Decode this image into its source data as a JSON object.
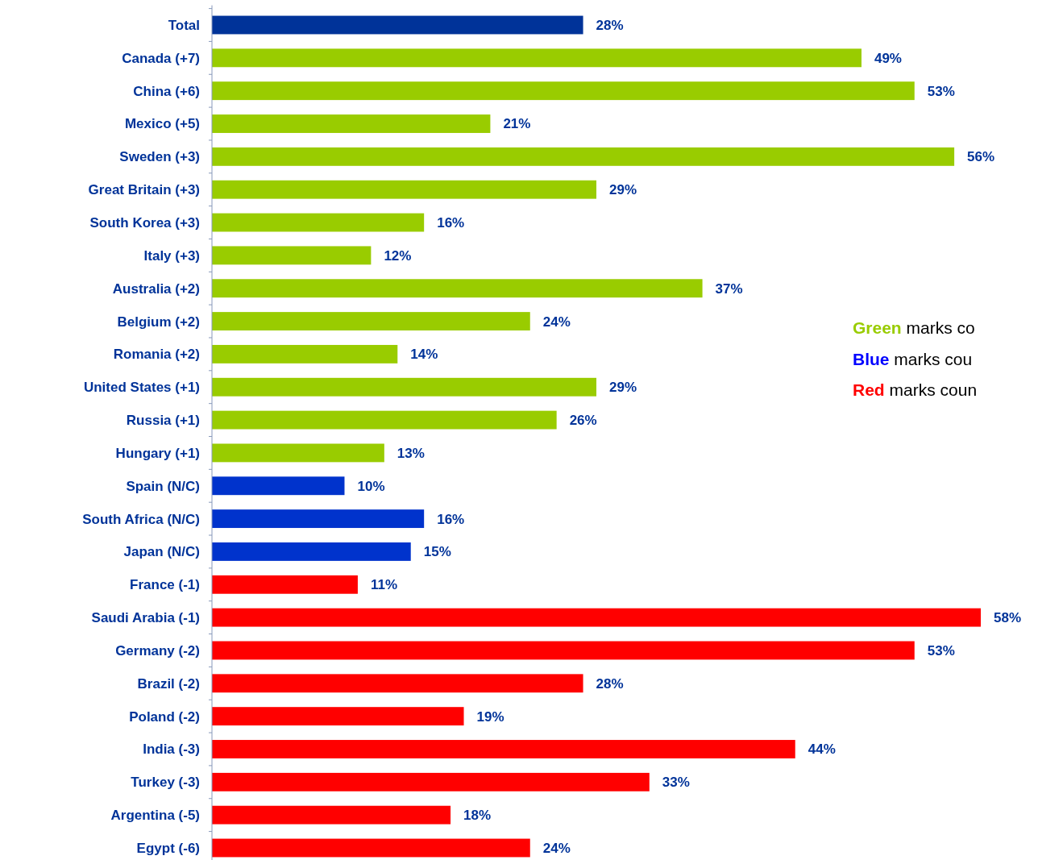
{
  "chart_data": {
    "type": "bar",
    "orientation": "horizontal",
    "value_labels": [
      "28%",
      "49%",
      "53%",
      "21%",
      "56%",
      "29%",
      "16%",
      "12%",
      "37%",
      "24%",
      "14%",
      "29%",
      "26%",
      "13%",
      "10%",
      "16%",
      "15%",
      "11%",
      "58%",
      "53%",
      "28%",
      "19%",
      "44%",
      "33%",
      "18%",
      "24%"
    ],
    "categories": [
      "Total",
      "Canada (+7)",
      "China (+6)",
      "Mexico (+5)",
      "Sweden (+3)",
      "Great Britain (+3)",
      "South Korea (+3)",
      "Italy (+3)",
      "Australia (+2)",
      "Belgium (+2)",
      "Romania (+2)",
      "United States (+1)",
      "Russia (+1)",
      "Hungary (+1)",
      "Spain (N/C)",
      "South Africa (N/C)",
      "Japan (N/C)",
      "France (-1)",
      "Saudi Arabia (-1)",
      "Germany (-2)",
      "Brazil (-2)",
      "Poland (-2)",
      "India (-3)",
      "Turkey (-3)",
      "Argentina (-5)",
      "Egypt (-6)"
    ],
    "values": [
      28,
      49,
      53,
      21,
      56,
      29,
      16,
      12,
      37,
      24,
      14,
      29,
      26,
      13,
      10,
      16,
      15,
      11,
      58,
      53,
      28,
      19,
      44,
      33,
      18,
      24
    ],
    "colors": [
      "#003399",
      "#99cc00",
      "#99cc00",
      "#99cc00",
      "#99cc00",
      "#99cc00",
      "#99cc00",
      "#99cc00",
      "#99cc00",
      "#99cc00",
      "#99cc00",
      "#99cc00",
      "#99cc00",
      "#99cc00",
      "#0033cc",
      "#0033cc",
      "#0033cc",
      "#ff0000",
      "#ff0000",
      "#ff0000",
      "#ff0000",
      "#ff0000",
      "#ff0000",
      "#ff0000",
      "#ff0000",
      "#ff0000"
    ],
    "annotations": [
      "Green marks co",
      "Blue marks cou",
      "Red marks coun"
    ]
  }
}
